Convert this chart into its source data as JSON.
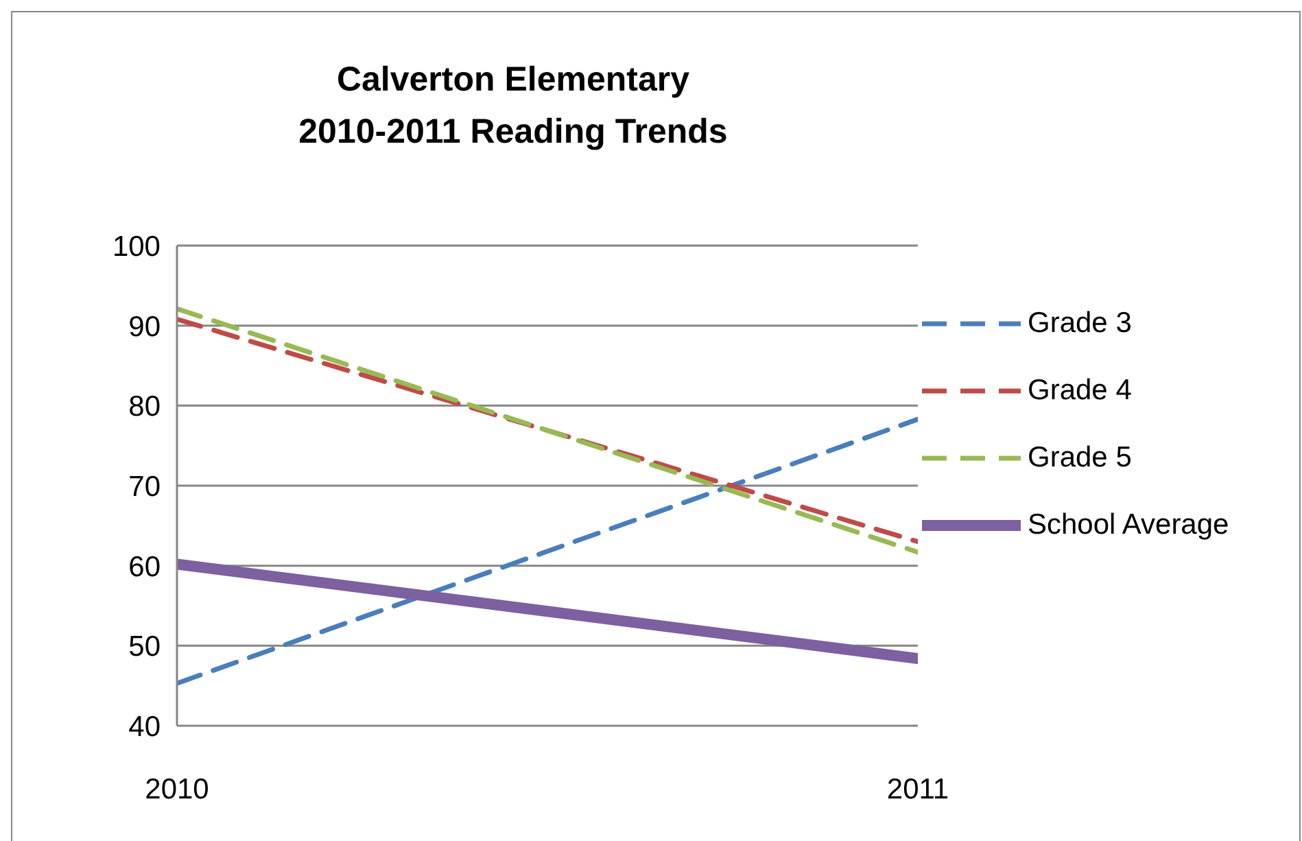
{
  "chart_data": {
    "type": "line",
    "title": "Calverton Elementary\n2010-2011 Reading Trends",
    "x": [
      2010,
      2011
    ],
    "xlim": [
      2010,
      2011
    ],
    "xticks": [
      2010,
      2011
    ],
    "ylim": [
      40,
      100
    ],
    "yticks": [
      40,
      50,
      60,
      70,
      80,
      90,
      100
    ],
    "grid": "y",
    "legend": "right",
    "marker": "none",
    "series": [
      {
        "name": "Grade 3",
        "color": "#4a7ebb",
        "values": [
          45.3,
          78.3
        ],
        "line_style": "dashed"
      },
      {
        "name": "Grade 4",
        "color": "#be4b48",
        "values": [
          90.8,
          63
        ],
        "line_style": "dashed"
      },
      {
        "name": "Grade 5",
        "color": "#98b954",
        "values": [
          92.1,
          61.7
        ],
        "line_style": "dashed"
      },
      {
        "name": "School Average",
        "color": "#7d60a0",
        "values": [
          60.2,
          48.4
        ],
        "line_style": "solid"
      }
    ]
  }
}
